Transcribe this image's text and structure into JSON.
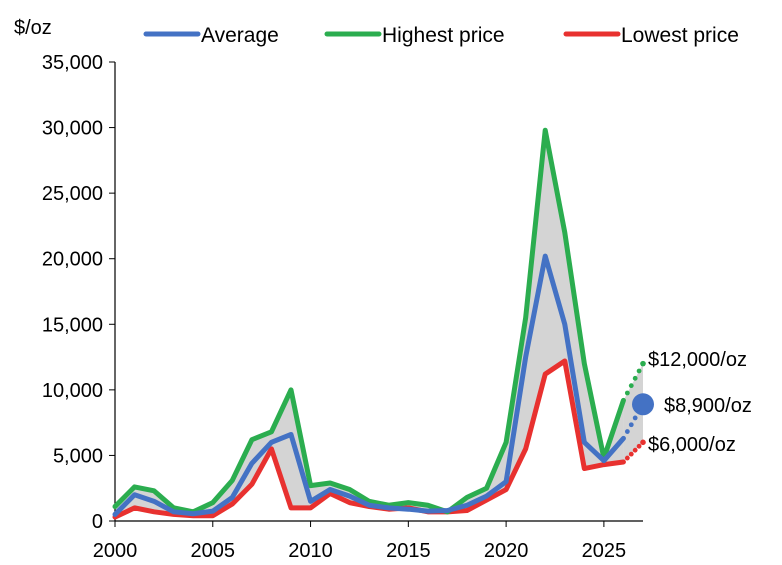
{
  "chart_data": {
    "type": "line",
    "ylabel": "$/oz",
    "xlim": [
      2000,
      2027
    ],
    "ylim": [
      0,
      35000
    ],
    "x_ticks": [
      "2000",
      "2005",
      "2010",
      "2015",
      "2020",
      "2025"
    ],
    "y_ticks": [
      "0",
      "5,000",
      "10,000",
      "15,000",
      "20,000",
      "25,000",
      "30,000",
      "35,000"
    ],
    "grid": false,
    "legend_position": "top",
    "x": [
      2000,
      2001,
      2002,
      2003,
      2004,
      2005,
      2006,
      2007,
      2008,
      2009,
      2010,
      2011,
      2012,
      2013,
      2014,
      2015,
      2016,
      2017,
      2018,
      2019,
      2020,
      2021,
      2022,
      2023,
      2024,
      2025,
      2026
    ],
    "series": [
      {
        "name": "Average",
        "color": "#4472C4",
        "values": [
          500,
          2000,
          1500,
          700,
          550,
          750,
          1800,
          4400,
          6000,
          6600,
          1500,
          2400,
          1900,
          1200,
          1000,
          900,
          750,
          800,
          1200,
          1900,
          3000,
          12500,
          20200,
          15000,
          6000,
          4600,
          6300
        ]
      },
      {
        "name": "Highest price",
        "color": "#2BAD4F",
        "values": [
          1100,
          2600,
          2300,
          1000,
          700,
          1400,
          3100,
          6200,
          6800,
          10000,
          2700,
          2900,
          2400,
          1500,
          1200,
          1400,
          1200,
          700,
          1800,
          2500,
          6000,
          15500,
          29800,
          22000,
          12000,
          4800,
          9200
        ]
      },
      {
        "name": "Lowest price",
        "color": "#E8312F",
        "values": [
          300,
          1000,
          700,
          500,
          400,
          400,
          1300,
          2800,
          5500,
          1000,
          1000,
          2100,
          1400,
          1100,
          900,
          1000,
          700,
          700,
          800,
          1600,
          2400,
          5500,
          11200,
          12200,
          4000,
          4300,
          4500
        ]
      }
    ],
    "forecast": {
      "x_from": 2026,
      "x_to": 2027,
      "highest_from": 9200,
      "highest_to": 12000,
      "average_from": 6300,
      "average_to": 8900,
      "lowest_from": 4500,
      "lowest_to": 6000
    },
    "annotations": [
      {
        "label": "$12,000/oz",
        "value": 12000,
        "color": "#2BAD4F"
      },
      {
        "label": "$8,900/oz",
        "value": 8900,
        "color": "#4472C4"
      },
      {
        "label": "$6,000/oz",
        "value": 6000,
        "color": "#E8312F"
      }
    ],
    "band_color": "#D4D4D4"
  }
}
